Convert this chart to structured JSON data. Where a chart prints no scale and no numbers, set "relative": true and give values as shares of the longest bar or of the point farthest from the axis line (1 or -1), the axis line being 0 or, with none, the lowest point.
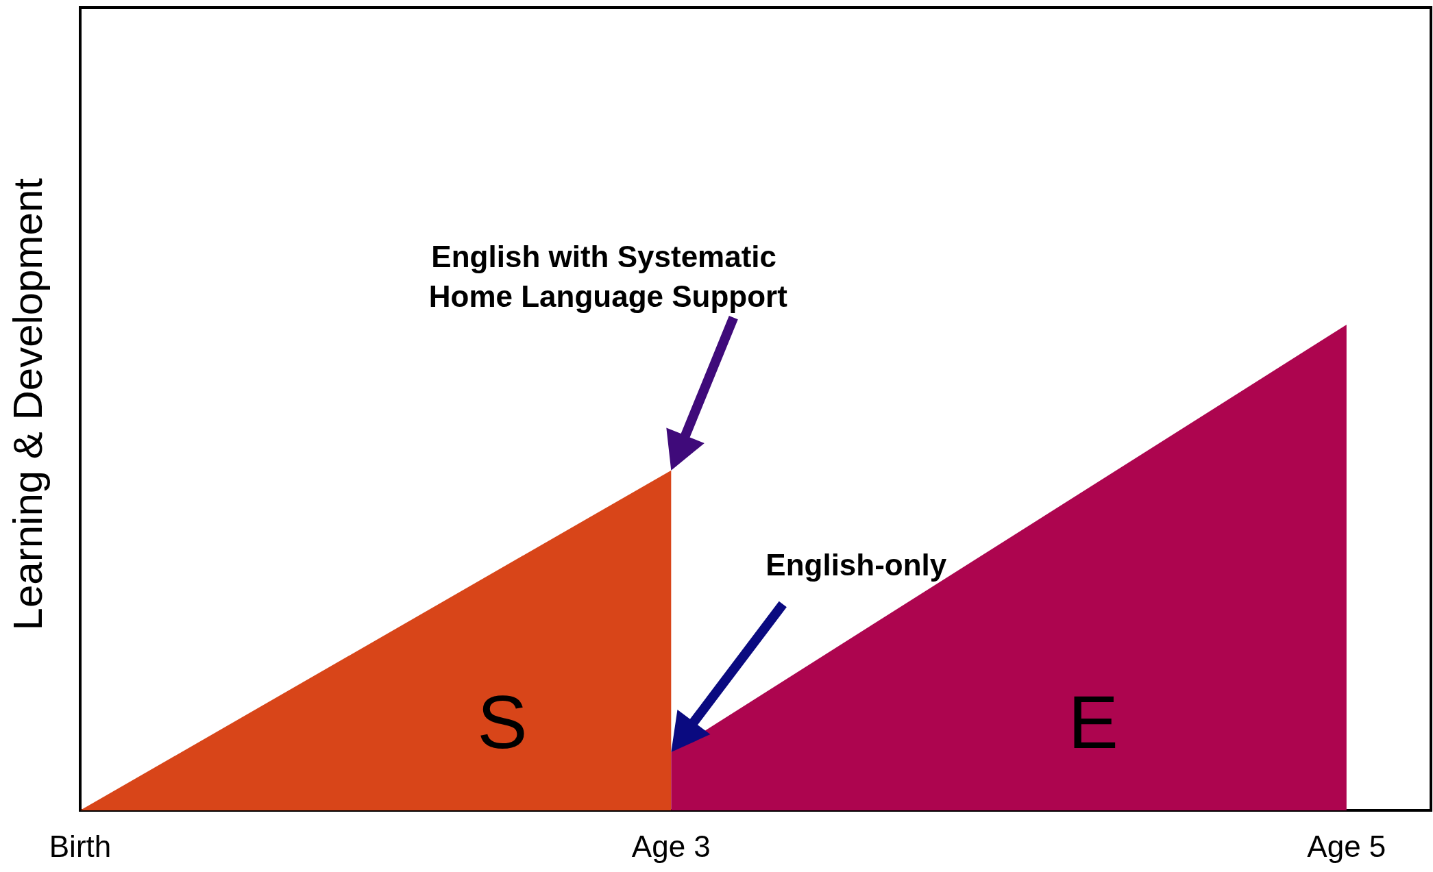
{
  "chart_data": {
    "type": "area",
    "relative": true,
    "ylabel": "Learning & Development",
    "categories": [
      "Birth",
      null,
      null,
      null,
      null,
      null,
      null,
      "Age 3",
      null,
      null,
      null,
      null,
      null,
      null,
      null,
      "Age 5",
      null
    ],
    "series": [
      {
        "name": "S",
        "color": "#d84519",
        "values": [
          0,
          null,
          null,
          null,
          null,
          null,
          null,
          0.7,
          null,
          null,
          null,
          null,
          null,
          null,
          null,
          null,
          null
        ]
      },
      {
        "name": "E",
        "color": "#ad054f",
        "values": [
          null,
          null,
          null,
          null,
          null,
          null,
          null,
          0.12,
          null,
          null,
          null,
          null,
          null,
          null,
          null,
          1,
          null
        ]
      }
    ],
    "annotations": [
      "English with Systematic Home Language Support",
      "English-only"
    ]
  }
}
